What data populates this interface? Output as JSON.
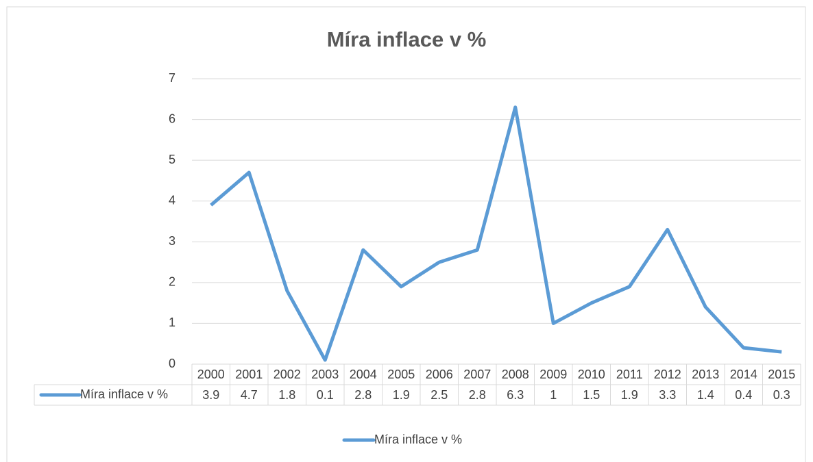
{
  "chart_data": {
    "type": "line",
    "title": "Míra inflace v %",
    "categories": [
      "2000",
      "2001",
      "2002",
      "2003",
      "2004",
      "2005",
      "2006",
      "2007",
      "2008",
      "2009",
      "2010",
      "2011",
      "2012",
      "2013",
      "2014",
      "2015"
    ],
    "series": [
      {
        "name": "Míra inflace v %",
        "color": "#5b9bd5",
        "values": [
          3.9,
          4.7,
          1.8,
          0.1,
          2.8,
          1.9,
          2.5,
          2.8,
          6.3,
          1,
          1.5,
          1.9,
          3.3,
          1.4,
          0.4,
          0.3
        ]
      }
    ],
    "ylim": [
      0,
      7
    ],
    "yticks": [
      0,
      1,
      2,
      3,
      4,
      5,
      6,
      7
    ],
    "grid": true,
    "legend": "bottom",
    "data_table": true
  }
}
